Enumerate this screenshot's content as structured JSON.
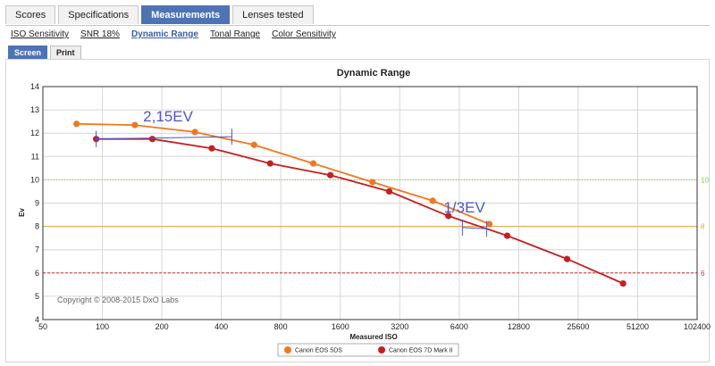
{
  "tabs": [
    {
      "label": "Scores",
      "active": false
    },
    {
      "label": "Specifications",
      "active": false
    },
    {
      "label": "Measurements",
      "active": true
    },
    {
      "label": "Lenses tested",
      "active": false
    }
  ],
  "subnav": [
    {
      "label": "ISO Sensitivity",
      "active": false
    },
    {
      "label": "SNR 18%",
      "active": false
    },
    {
      "label": "Dynamic Range",
      "active": true
    },
    {
      "label": "Tonal Range",
      "active": false
    },
    {
      "label": "Color Sensitivity",
      "active": false
    }
  ],
  "view_modes": [
    {
      "label": "Screen",
      "active": true
    },
    {
      "label": "Print",
      "active": false
    }
  ],
  "chart_data": {
    "type": "line",
    "title": "Dynamic Range",
    "xlabel": "Measured ISO",
    "ylabel": "Ev",
    "x_scale": "log2",
    "x_ticks": [
      50,
      100,
      200,
      400,
      800,
      1600,
      3200,
      6400,
      12800,
      25600,
      51200,
      102400
    ],
    "x_tick_labels": [
      "50",
      "100",
      "200",
      "400",
      "800",
      "1600",
      "3200",
      "6400",
      "12800",
      "25600",
      "51200",
      "102400"
    ],
    "ylim": [
      4,
      14
    ],
    "y_ticks": [
      4,
      5,
      6,
      7,
      8,
      9,
      10,
      11,
      12,
      13,
      14
    ],
    "grid": true,
    "series": [
      {
        "name": "Canon EOS 5DS",
        "color": "#f07820",
        "points": [
          [
            74,
            12.4
          ],
          [
            146,
            12.35
          ],
          [
            294,
            12.05
          ],
          [
            586,
            11.5
          ],
          [
            1168,
            10.7
          ],
          [
            2330,
            9.9
          ],
          [
            4700,
            9.1
          ],
          [
            9100,
            8.1
          ]
        ]
      },
      {
        "name": "Canon EOS 7D Mark II",
        "color": "#c81e1e",
        "points": [
          [
            93,
            11.75
          ],
          [
            179,
            11.75
          ],
          [
            358,
            11.35
          ],
          [
            707,
            10.7
          ],
          [
            1425,
            10.2
          ],
          [
            2830,
            9.5
          ],
          [
            5640,
            8.45
          ],
          [
            11200,
            7.6
          ],
          [
            22500,
            6.6
          ],
          [
            43200,
            5.55
          ]
        ]
      }
    ],
    "reference_lines": [
      {
        "y": 10,
        "label": "10",
        "color": "#7dcc4a",
        "style": "dotted"
      },
      {
        "y": 8,
        "label": "8",
        "color": "#e8a43a",
        "style": "solid"
      },
      {
        "y": 6,
        "label": "6",
        "color": "#d03030",
        "style": "dashed"
      }
    ],
    "annotations": [
      {
        "text": "2,15EV",
        "x": 215,
        "y": 12.5
      },
      {
        "text": "1/3EV",
        "x": 6800,
        "y": 8.6
      }
    ],
    "markers": [
      {
        "x": 93,
        "y": 11.75
      },
      {
        "x": 452,
        "y": 11.85
      },
      {
        "x": 6640,
        "y": 7.95
      },
      {
        "x": 8800,
        "y": 7.9
      }
    ],
    "legend_position": "bottom-center",
    "copyright": "Copyright © 2008-2015 DxO Labs"
  }
}
